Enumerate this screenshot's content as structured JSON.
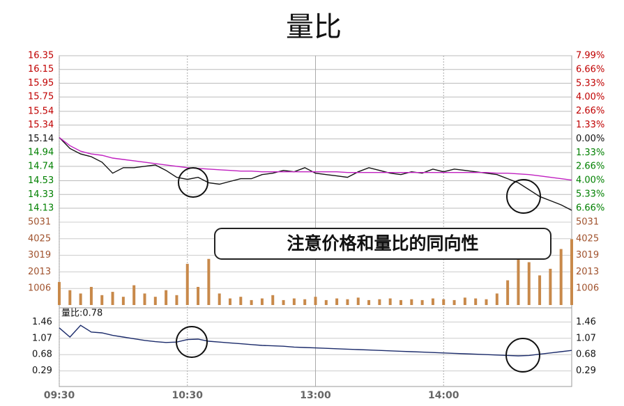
{
  "chart_data": {
    "type": "line",
    "title": "量比",
    "annotation": "注意价格和量比的同向性",
    "x": [
      "09:30",
      "09:35",
      "09:40",
      "09:45",
      "09:50",
      "09:55",
      "10:00",
      "10:05",
      "10:10",
      "10:15",
      "10:20",
      "10:25",
      "10:30",
      "10:35",
      "10:40",
      "10:45",
      "10:50",
      "10:55",
      "11:00",
      "11:05",
      "11:10",
      "11:15",
      "11:20",
      "11:25",
      "11:30",
      "13:05",
      "13:10",
      "13:15",
      "13:20",
      "13:25",
      "13:30",
      "13:35",
      "13:40",
      "13:45",
      "13:50",
      "13:55",
      "14:00",
      "14:05",
      "14:10",
      "14:15",
      "14:20",
      "14:25",
      "14:30",
      "14:35",
      "14:40",
      "14:45",
      "14:50",
      "14:55",
      "15:00"
    ],
    "xlim": [
      "09:30",
      "15:00"
    ],
    "xticks": [
      "09:30",
      "10:30",
      "13:00",
      "14:00"
    ],
    "ylim": [
      14.13,
      16.35
    ],
    "yticks": [
      16.35,
      16.15,
      15.95,
      15.75,
      15.54,
      15.34,
      15.14,
      14.94,
      14.74,
      14.53,
      14.33,
      14.13
    ],
    "y2lim": [
      -6.66,
      7.99
    ],
    "y2ticks": [
      {
        "value": 7.99,
        "label": "7.99%"
      },
      {
        "value": 6.66,
        "label": "6.66%"
      },
      {
        "value": 5.33,
        "label": "5.33%"
      },
      {
        "value": 4.0,
        "label": "4.00%"
      },
      {
        "value": 2.66,
        "label": "2.66%"
      },
      {
        "value": 1.33,
        "label": "1.33%"
      },
      {
        "value": 0,
        "label": "0.00%"
      },
      {
        "value": -1.33,
        "label": "1.33%"
      },
      {
        "value": -2.66,
        "label": "2.66%"
      },
      {
        "value": -4.0,
        "label": "4.00%"
      },
      {
        "value": -5.33,
        "label": "5.33%"
      },
      {
        "value": -6.66,
        "label": "6.66%"
      }
    ],
    "grid": true,
    "series": [
      {
        "color": "#111111",
        "values": [
          15.16,
          15.0,
          14.92,
          14.88,
          14.8,
          14.64,
          14.72,
          14.72,
          14.74,
          14.76,
          14.68,
          14.58,
          14.55,
          14.58,
          14.5,
          14.48,
          14.52,
          14.56,
          14.56,
          14.62,
          14.64,
          14.68,
          14.66,
          14.72,
          14.64,
          14.62,
          14.6,
          14.58,
          14.66,
          14.72,
          14.68,
          14.64,
          14.62,
          14.66,
          14.64,
          14.7,
          14.66,
          14.7,
          14.68,
          14.66,
          14.64,
          14.62,
          14.56,
          14.5,
          14.4,
          14.3,
          14.24,
          14.18,
          14.1
        ]
      },
      {
        "color": "#c020c0",
        "values": [
          15.16,
          15.04,
          14.96,
          14.92,
          14.9,
          14.86,
          14.84,
          14.82,
          14.8,
          14.78,
          14.76,
          14.74,
          14.72,
          14.71,
          14.7,
          14.69,
          14.68,
          14.67,
          14.67,
          14.66,
          14.66,
          14.66,
          14.66,
          14.66,
          14.66,
          14.66,
          14.66,
          14.65,
          14.65,
          14.65,
          14.65,
          14.65,
          14.65,
          14.65,
          14.65,
          14.65,
          14.65,
          14.65,
          14.65,
          14.65,
          14.65,
          14.64,
          14.64,
          14.63,
          14.62,
          14.6,
          14.58,
          14.56,
          14.54
        ]
      }
    ],
    "volume": {
      "color": "#c8894a",
      "ylim": [
        0,
        5031
      ],
      "yticks": [
        5031,
        4025,
        3019,
        2013,
        1006
      ],
      "values": [
        1400,
        900,
        700,
        1100,
        600,
        800,
        500,
        1200,
        700,
        500,
        900,
        600,
        2500,
        1100,
        2800,
        700,
        400,
        500,
        300,
        400,
        600,
        300,
        400,
        350,
        500,
        300,
        400,
        350,
        450,
        300,
        350,
        400,
        300,
        350,
        300,
        400,
        350,
        300,
        450,
        400,
        350,
        700,
        1500,
        4200,
        2600,
        1800,
        2200,
        3400,
        4000
      ]
    },
    "ratio": {
      "label": "量比:0.78",
      "color": "#1a2a6a",
      "ylim": [
        0,
        1.75
      ],
      "yticks": [
        1.46,
        1.07,
        0.68,
        0.29
      ],
      "values": [
        1.32,
        1.1,
        1.38,
        1.22,
        1.2,
        1.14,
        1.1,
        1.06,
        1.02,
        0.99,
        0.97,
        0.98,
        1.04,
        1.05,
        1.0,
        0.98,
        0.96,
        0.94,
        0.92,
        0.9,
        0.89,
        0.88,
        0.86,
        0.85,
        0.84,
        0.83,
        0.82,
        0.81,
        0.8,
        0.79,
        0.78,
        0.77,
        0.76,
        0.75,
        0.74,
        0.73,
        0.72,
        0.71,
        0.7,
        0.69,
        0.68,
        0.67,
        0.66,
        0.65,
        0.66,
        0.69,
        0.72,
        0.75,
        0.78
      ]
    }
  }
}
